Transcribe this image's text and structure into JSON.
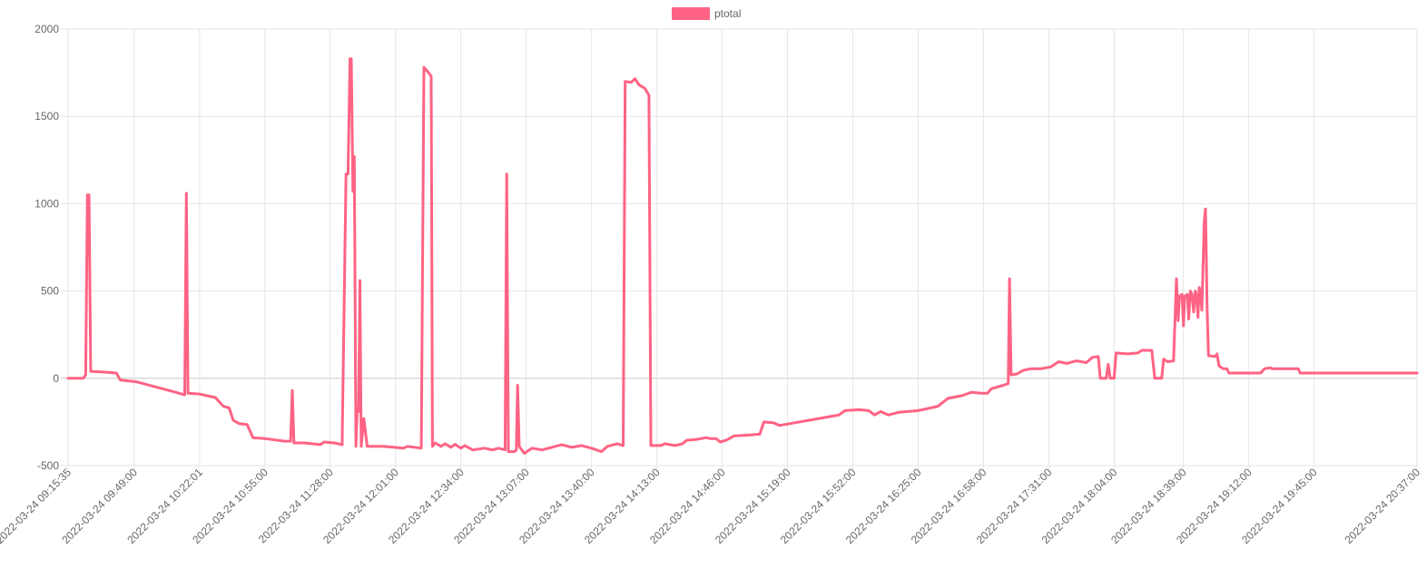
{
  "chart_data": {
    "type": "line",
    "series": [
      {
        "name": "ptotal",
        "color": "#ff6384",
        "points": [
          [
            "2022-03-24 09:15:35",
            0
          ],
          [
            "2022-03-24 09:23:20",
            0
          ],
          [
            "2022-03-24 09:24:30",
            20
          ],
          [
            "2022-03-24 09:25:20",
            1050
          ],
          [
            "2022-03-24 09:26:10",
            1050
          ],
          [
            "2022-03-24 09:27:00",
            40
          ],
          [
            "2022-03-24 09:35:00",
            35
          ],
          [
            "2022-03-24 09:40:00",
            30
          ],
          [
            "2022-03-24 09:42:00",
            -10
          ],
          [
            "2022-03-24 09:50:00",
            -20
          ],
          [
            "2022-03-24 10:00:00",
            -50
          ],
          [
            "2022-03-24 10:10:00",
            -80
          ],
          [
            "2022-03-24 10:14:30",
            -95
          ],
          [
            "2022-03-24 10:15:20",
            1060
          ],
          [
            "2022-03-24 10:16:10",
            -85
          ],
          [
            "2022-03-24 10:22:00",
            -90
          ],
          [
            "2022-03-24 10:30:00",
            -110
          ],
          [
            "2022-03-24 10:34:00",
            -160
          ],
          [
            "2022-03-24 10:37:00",
            -170
          ],
          [
            "2022-03-24 10:39:00",
            -240
          ],
          [
            "2022-03-24 10:42:00",
            -260
          ],
          [
            "2022-03-24 10:46:00",
            -265
          ],
          [
            "2022-03-24 10:49:00",
            -340
          ],
          [
            "2022-03-24 10:55:00",
            -345
          ],
          [
            "2022-03-24 11:05:00",
            -360
          ],
          [
            "2022-03-24 11:08:00",
            -360
          ],
          [
            "2022-03-24 11:08:50",
            -70
          ],
          [
            "2022-03-24 11:09:40",
            -370
          ],
          [
            "2022-03-24 11:15:00",
            -370
          ],
          [
            "2022-03-24 11:23:00",
            -380
          ],
          [
            "2022-03-24 11:25:00",
            -365
          ],
          [
            "2022-03-24 11:30:00",
            -370
          ],
          [
            "2022-03-24 11:34:00",
            -380
          ],
          [
            "2022-03-24 11:36:00",
            1170
          ],
          [
            "2022-03-24 11:37:00",
            1170
          ],
          [
            "2022-03-24 11:38:00",
            1830
          ],
          [
            "2022-03-24 11:38:40",
            1830
          ],
          [
            "2022-03-24 11:39:30",
            1070
          ],
          [
            "2022-03-24 11:40:10",
            1270
          ],
          [
            "2022-03-24 11:41:00",
            -390
          ],
          [
            "2022-03-24 11:41:40",
            -170
          ],
          [
            "2022-03-24 11:42:20",
            -190
          ],
          [
            "2022-03-24 11:43:00",
            560
          ],
          [
            "2022-03-24 11:43:40",
            -390
          ],
          [
            "2022-03-24 11:45:00",
            -230
          ],
          [
            "2022-03-24 11:46:40",
            -390
          ],
          [
            "2022-03-24 11:55:00",
            -390
          ],
          [
            "2022-03-24 12:05:00",
            -400
          ],
          [
            "2022-03-24 12:07:00",
            -390
          ],
          [
            "2022-03-24 12:14:00",
            -400
          ],
          [
            "2022-03-24 12:15:20",
            1780
          ],
          [
            "2022-03-24 12:17:00",
            1760
          ],
          [
            "2022-03-24 12:19:00",
            1730
          ],
          [
            "2022-03-24 12:19:40",
            -390
          ],
          [
            "2022-03-24 12:21:00",
            -370
          ],
          [
            "2022-03-24 12:24:00",
            -390
          ],
          [
            "2022-03-24 12:26:00",
            -375
          ],
          [
            "2022-03-24 12:29:00",
            -395
          ],
          [
            "2022-03-24 12:31:00",
            -378
          ],
          [
            "2022-03-24 12:34:00",
            -400
          ],
          [
            "2022-03-24 12:36:00",
            -385
          ],
          [
            "2022-03-24 12:40:00",
            -410
          ],
          [
            "2022-03-24 12:46:00",
            -400
          ],
          [
            "2022-03-24 12:50:00",
            -410
          ],
          [
            "2022-03-24 12:53:00",
            -400
          ],
          [
            "2022-03-24 12:56:20",
            -410
          ],
          [
            "2022-03-24 12:57:10",
            1170
          ],
          [
            "2022-03-24 12:58:00",
            -420
          ],
          [
            "2022-03-24 13:01:00",
            -420
          ],
          [
            "2022-03-24 13:02:00",
            -410
          ],
          [
            "2022-03-24 13:02:40",
            -40
          ],
          [
            "2022-03-24 13:03:30",
            -390
          ],
          [
            "2022-03-24 13:06:00",
            -430
          ],
          [
            "2022-03-24 13:10:00",
            -400
          ],
          [
            "2022-03-24 13:15:00",
            -410
          ],
          [
            "2022-03-24 13:20:00",
            -395
          ],
          [
            "2022-03-24 13:25:00",
            -380
          ],
          [
            "2022-03-24 13:30:00",
            -395
          ],
          [
            "2022-03-24 13:35:00",
            -385
          ],
          [
            "2022-03-24 13:40:00",
            -400
          ],
          [
            "2022-03-24 13:45:00",
            -420
          ],
          [
            "2022-03-24 13:48:00",
            -390
          ],
          [
            "2022-03-24 13:53:00",
            -375
          ],
          [
            "2022-03-24 13:56:00",
            -385
          ],
          [
            "2022-03-24 13:57:00",
            1700
          ],
          [
            "2022-03-24 14:00:00",
            1695
          ],
          [
            "2022-03-24 14:02:00",
            1715
          ],
          [
            "2022-03-24 14:04:00",
            1680
          ],
          [
            "2022-03-24 14:07:00",
            1660
          ],
          [
            "2022-03-24 14:09:00",
            1620
          ],
          [
            "2022-03-24 14:10:00",
            -385
          ],
          [
            "2022-03-24 14:15:00",
            -385
          ],
          [
            "2022-03-24 14:17:00",
            -375
          ],
          [
            "2022-03-24 14:22:00",
            -385
          ],
          [
            "2022-03-24 14:26:00",
            -375
          ],
          [
            "2022-03-24 14:28:00",
            -355
          ],
          [
            "2022-03-24 14:33:00",
            -350
          ],
          [
            "2022-03-24 14:38:00",
            -340
          ],
          [
            "2022-03-24 14:40:00",
            -345
          ],
          [
            "2022-03-24 14:43:00",
            -345
          ],
          [
            "2022-03-24 14:45:00",
            -365
          ],
          [
            "2022-03-24 14:48:00",
            -355
          ],
          [
            "2022-03-24 14:52:00",
            -330
          ],
          [
            "2022-03-24 15:00:00",
            -325
          ],
          [
            "2022-03-24 15:05:00",
            -320
          ],
          [
            "2022-03-24 15:07:00",
            -250
          ],
          [
            "2022-03-24 15:12:00",
            -255
          ],
          [
            "2022-03-24 15:15:00",
            -270
          ],
          [
            "2022-03-24 15:20:00",
            -260
          ],
          [
            "2022-03-24 15:30:00",
            -240
          ],
          [
            "2022-03-24 15:40:00",
            -220
          ],
          [
            "2022-03-24 15:45:00",
            -210
          ],
          [
            "2022-03-24 15:48:00",
            -185
          ],
          [
            "2022-03-24 15:55:00",
            -180
          ],
          [
            "2022-03-24 16:00:00",
            -185
          ],
          [
            "2022-03-24 16:03:00",
            -210
          ],
          [
            "2022-03-24 16:06:00",
            -190
          ],
          [
            "2022-03-24 16:10:00",
            -210
          ],
          [
            "2022-03-24 16:15:00",
            -195
          ],
          [
            "2022-03-24 16:25:00",
            -185
          ],
          [
            "2022-03-24 16:35:00",
            -160
          ],
          [
            "2022-03-24 16:40:00",
            -115
          ],
          [
            "2022-03-24 16:47:00",
            -100
          ],
          [
            "2022-03-24 16:52:00",
            -80
          ],
          [
            "2022-03-24 16:57:00",
            -85
          ],
          [
            "2022-03-24 17:00:00",
            -85
          ],
          [
            "2022-03-24 17:02:00",
            -60
          ],
          [
            "2022-03-24 17:08:00",
            -40
          ],
          [
            "2022-03-24 17:10:30",
            -30
          ],
          [
            "2022-03-24 17:11:10",
            570
          ],
          [
            "2022-03-24 17:12:00",
            20
          ],
          [
            "2022-03-24 17:15:00",
            25
          ],
          [
            "2022-03-24 17:18:00",
            45
          ],
          [
            "2022-03-24 17:22:00",
            55
          ],
          [
            "2022-03-24 17:27:00",
            55
          ],
          [
            "2022-03-24 17:32:00",
            65
          ],
          [
            "2022-03-24 17:36:00",
            95
          ],
          [
            "2022-03-24 17:40:00",
            85
          ],
          [
            "2022-03-24 17:45:00",
            100
          ],
          [
            "2022-03-24 17:50:00",
            90
          ],
          [
            "2022-03-24 17:53:00",
            120
          ],
          [
            "2022-03-24 17:56:00",
            125
          ],
          [
            "2022-03-24 17:57:00",
            0
          ],
          [
            "2022-03-24 18:00:00",
            0
          ],
          [
            "2022-03-24 18:01:00",
            80
          ],
          [
            "2022-03-24 18:02:00",
            0
          ],
          [
            "2022-03-24 18:04:00",
            0
          ],
          [
            "2022-03-24 18:05:00",
            145
          ],
          [
            "2022-03-24 18:11:00",
            140
          ],
          [
            "2022-03-24 18:16:00",
            145
          ],
          [
            "2022-03-24 18:18:00",
            160
          ],
          [
            "2022-03-24 18:23:00",
            160
          ],
          [
            "2022-03-24 18:24:30",
            0
          ],
          [
            "2022-03-24 18:28:00",
            0
          ],
          [
            "2022-03-24 18:29:00",
            110
          ],
          [
            "2022-03-24 18:31:00",
            95
          ],
          [
            "2022-03-24 18:34:00",
            100
          ],
          [
            "2022-03-24 18:35:30",
            570
          ],
          [
            "2022-03-24 18:36:20",
            330
          ],
          [
            "2022-03-24 18:37:00",
            470
          ],
          [
            "2022-03-24 18:38:20",
            480
          ],
          [
            "2022-03-24 18:39:00",
            300
          ],
          [
            "2022-03-24 18:39:40",
            470
          ],
          [
            "2022-03-24 18:41:00",
            480
          ],
          [
            "2022-03-24 18:41:40",
            340
          ],
          [
            "2022-03-24 18:42:30",
            500
          ],
          [
            "2022-03-24 18:43:20",
            480
          ],
          [
            "2022-03-24 18:44:10",
            380
          ],
          [
            "2022-03-24 18:45:00",
            500
          ],
          [
            "2022-03-24 18:45:40",
            470
          ],
          [
            "2022-03-24 18:46:20",
            350
          ],
          [
            "2022-03-24 18:47:00",
            520
          ],
          [
            "2022-03-24 18:47:40",
            490
          ],
          [
            "2022-03-24 18:48:20",
            390
          ],
          [
            "2022-03-24 18:49:30",
            900
          ],
          [
            "2022-03-24 18:50:10",
            970
          ],
          [
            "2022-03-24 18:51:00",
            400
          ],
          [
            "2022-03-24 18:51:40",
            130
          ],
          [
            "2022-03-24 18:55:00",
            125
          ],
          [
            "2022-03-24 18:56:00",
            140
          ],
          [
            "2022-03-24 18:57:00",
            70
          ],
          [
            "2022-03-24 18:59:00",
            55
          ],
          [
            "2022-03-24 19:01:00",
            55
          ],
          [
            "2022-03-24 19:02:00",
            30
          ],
          [
            "2022-03-24 19:18:00",
            30
          ],
          [
            "2022-03-24 19:20:00",
            55
          ],
          [
            "2022-03-24 19:23:00",
            60
          ],
          [
            "2022-03-24 19:24:00",
            55
          ],
          [
            "2022-03-24 19:37:00",
            55
          ],
          [
            "2022-03-24 19:38:00",
            30
          ],
          [
            "2022-03-24 20:37:00",
            30
          ]
        ]
      }
    ],
    "x_ticks": [
      "2022-03-24 09:15:35",
      "2022-03-24 09:49:00",
      "2022-03-24 10:22:01",
      "2022-03-24 10:55:00",
      "2022-03-24 11:28:00",
      "2022-03-24 12:01:00",
      "2022-03-24 12:34:00",
      "2022-03-24 13:07:00",
      "2022-03-24 13:40:00",
      "2022-03-24 14:13:00",
      "2022-03-24 14:46:00",
      "2022-03-24 15:19:00",
      "2022-03-24 15:52:00",
      "2022-03-24 16:25:00",
      "2022-03-24 16:58:00",
      "2022-03-24 17:31:00",
      "2022-03-24 18:04:00",
      "2022-03-24 18:39:00",
      "2022-03-24 19:12:00",
      "2022-03-24 19:45:00",
      "2022-03-24 20:37:00"
    ],
    "y_ticks": [
      2000,
      1500,
      1000,
      500,
      0,
      -500
    ],
    "ylim": [
      -500,
      2000
    ],
    "title": "",
    "xlabel": "",
    "ylabel": "",
    "grid": true,
    "legend_position": "top",
    "colors": {
      "line": "#ff6384",
      "grid": "#e6e6e6",
      "zero_line": "#c8c8c8",
      "axis_text": "#666666"
    }
  }
}
